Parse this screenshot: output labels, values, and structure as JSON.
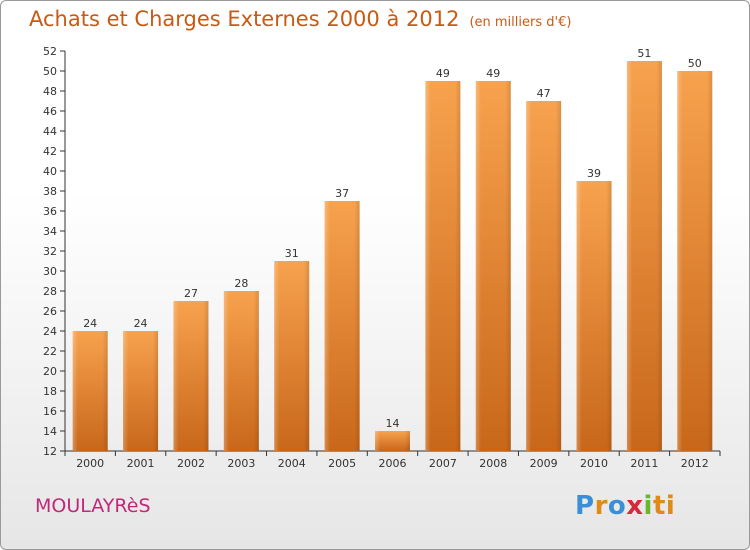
{
  "header": {
    "title": "Achats et Charges Externes 2000 à 2012",
    "subtitle": "(en milliers d'€)"
  },
  "footer": {
    "commune": "MOULAYRèS",
    "logo": [
      "P",
      "r",
      "o",
      "x",
      "i",
      "ti"
    ]
  },
  "colors": {
    "bar_light": "#f7a24e",
    "bar_dark": "#c8671a",
    "title": "#c85a14",
    "commune": "#c0287a"
  },
  "chart_data": {
    "type": "bar",
    "title": "Achats et Charges Externes 2000 à 2012",
    "subtitle": "(en milliers d'€)",
    "categories": [
      "2000",
      "2001",
      "2002",
      "2003",
      "2004",
      "2005",
      "2006",
      "2007",
      "2008",
      "2009",
      "2010",
      "2011",
      "2012"
    ],
    "values": [
      24,
      24,
      27,
      28,
      31,
      37,
      14,
      49,
      49,
      47,
      39,
      51,
      50
    ],
    "ylim": [
      12,
      52
    ],
    "yticks": [
      12,
      14,
      16,
      18,
      20,
      22,
      24,
      26,
      28,
      30,
      32,
      34,
      36,
      38,
      40,
      42,
      44,
      46,
      48,
      50,
      52
    ],
    "grid": false,
    "legend": "none"
  }
}
